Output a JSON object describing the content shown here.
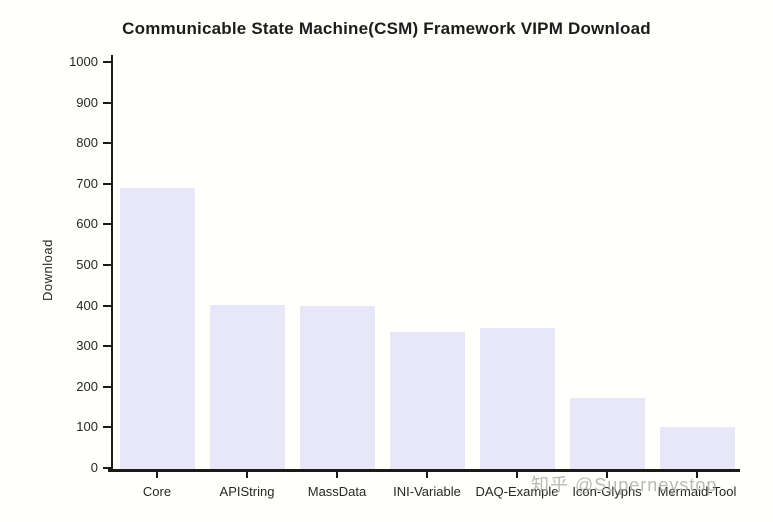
{
  "page": {
    "background": "#fffffc"
  },
  "watermark": {
    "text": "知乎 @Superneystop",
    "color": "#a2a2a2"
  },
  "chart_data": {
    "type": "bar",
    "title": "Communicable State Machine(CSM) Framework VIPM Download",
    "xlabel": "",
    "ylabel": "Download",
    "categories": [
      "Core",
      "APIString",
      "MassData",
      "INI-Variable",
      "DAQ-Example",
      "Icon-Glyphs",
      "Mermaid-Tool"
    ],
    "values": [
      690,
      402,
      399,
      336,
      344,
      172,
      100
    ],
    "ylim": [
      0,
      1000
    ],
    "yticks": [
      0,
      100,
      200,
      300,
      400,
      500,
      600,
      700,
      800,
      900,
      1000
    ],
    "grid": false,
    "legend": "none",
    "bar_color": "#e7e7f8",
    "axis_color": "#1a1a1a",
    "text_color": "#262626"
  }
}
